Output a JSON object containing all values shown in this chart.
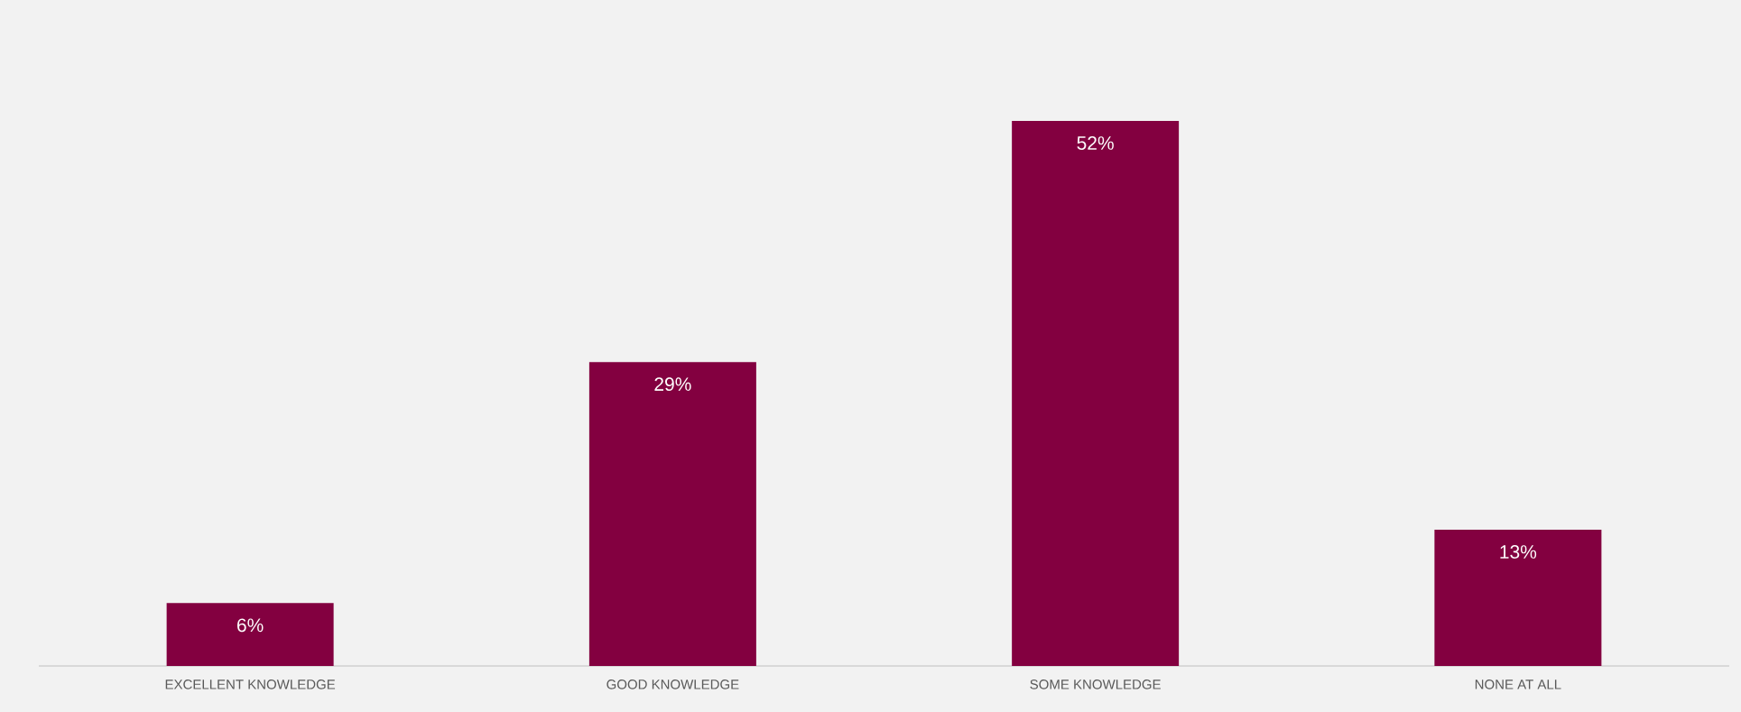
{
  "chart_data": {
    "type": "bar",
    "categories": [
      "EXCELLENT KNOWLEDGE",
      "GOOD KNOWLEDGE",
      "SOME KNOWLEDGE",
      "NONE AT ALL"
    ],
    "values": [
      6,
      29,
      52,
      13
    ],
    "value_labels": [
      "6%",
      "29%",
      "52%",
      "13%"
    ],
    "color": "#830040"
  }
}
